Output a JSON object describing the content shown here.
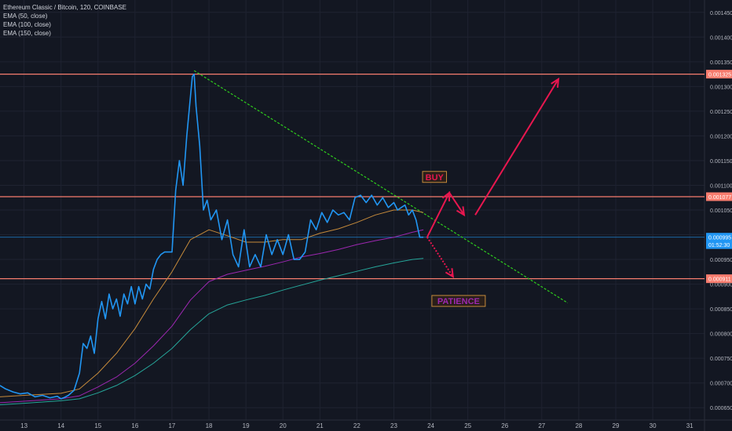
{
  "header": {
    "title": "Ethereum Classic / Bitcoin, 120, COINBASE",
    "indicators": [
      "EMA (50, close)",
      "EMA (100, close)",
      "EMA (150, close)"
    ]
  },
  "colors": {
    "background": "#131722",
    "grid": "#1f2331",
    "price": "#2196f3",
    "ema50": "#c58a3b",
    "ema100": "#9c27b0",
    "ema150": "#26a69a",
    "resistance": "#f77c6e",
    "trendline": "#2ecc1d",
    "arrow": "#e8174f",
    "axis_text": "#b2b5be",
    "label_text": "#ffffff"
  },
  "annotations": {
    "buy": "BUY",
    "patience": "PATIENCE"
  },
  "price_axis": {
    "ticks": [
      "0.001450",
      "0.001400",
      "0.001350",
      "0.001300",
      "0.001250",
      "0.001200",
      "0.001150",
      "0.001100",
      "0.001050",
      "0.001000",
      "0.000950",
      "0.000900",
      "0.000850",
      "0.000800",
      "0.000750",
      "0.000700",
      "0.000650"
    ],
    "level_labels": [
      {
        "text": "0.001325",
        "color": "#f77c6e",
        "value": 0.001325
      },
      {
        "text": "0.001077",
        "color": "#f77c6e",
        "value": 0.001077
      },
      {
        "text": "0.000995",
        "color": "#2196f3",
        "value": 0.000995
      },
      {
        "text": "01:52:30",
        "color": "#2196f3",
        "value": 0.00098
      },
      {
        "text": "0.000911",
        "color": "#f77c6e",
        "value": 0.000911
      }
    ]
  },
  "time_axis": {
    "labels": [
      "13",
      "14",
      "15",
      "16",
      "17",
      "18",
      "19",
      "20",
      "21",
      "22",
      "23",
      "24",
      "25",
      "26",
      "27",
      "28",
      "29",
      "30",
      "31"
    ]
  },
  "chart_data": {
    "type": "line",
    "ylim": [
      0.000625,
      0.001475
    ],
    "xlim": [
      12.35,
      31.4
    ],
    "price": {
      "x": [
        12.35,
        12.5,
        12.7,
        12.9,
        13.1,
        13.3,
        13.5,
        13.7,
        13.9,
        14.0,
        14.1,
        14.2,
        14.35,
        14.5,
        14.6,
        14.7,
        14.8,
        14.9,
        15.0,
        15.1,
        15.2,
        15.3,
        15.4,
        15.5,
        15.6,
        15.7,
        15.8,
        15.9,
        16.0,
        16.1,
        16.2,
        16.3,
        16.4,
        16.5,
        16.6,
        16.7,
        16.8,
        16.9,
        17.0,
        17.1,
        17.2,
        17.3,
        17.4,
        17.5,
        17.55,
        17.6,
        17.65,
        17.75,
        17.85,
        17.95,
        18.05,
        18.2,
        18.35,
        18.5,
        18.65,
        18.8,
        18.95,
        19.1,
        19.25,
        19.4,
        19.55,
        19.7,
        19.85,
        20.0,
        20.15,
        20.3,
        20.45,
        20.6,
        20.75,
        20.9,
        21.05,
        21.2,
        21.35,
        21.5,
        21.65,
        21.8,
        21.95,
        22.1,
        22.25,
        22.4,
        22.55,
        22.7,
        22.85,
        23.0,
        23.1,
        23.2,
        23.3,
        23.4,
        23.5,
        23.6,
        23.7,
        23.8
      ],
      "y": [
        0.000695,
        0.000688,
        0.000682,
        0.000678,
        0.00068,
        0.000672,
        0.000675,
        0.00067,
        0.000673,
        0.000668,
        0.000671,
        0.000675,
        0.000685,
        0.00072,
        0.00078,
        0.00077,
        0.000795,
        0.00076,
        0.00083,
        0.000865,
        0.00083,
        0.00088,
        0.00085,
        0.00087,
        0.000835,
        0.00088,
        0.00086,
        0.000895,
        0.00086,
        0.000895,
        0.00087,
        0.0009,
        0.00089,
        0.00093,
        0.00095,
        0.00096,
        0.000965,
        0.000965,
        0.000965,
        0.00109,
        0.00115,
        0.0011,
        0.0012,
        0.00128,
        0.00132,
        0.001325,
        0.00126,
        0.00118,
        0.00105,
        0.00107,
        0.00103,
        0.00105,
        0.00099,
        0.00103,
        0.00096,
        0.000935,
        0.00101,
        0.000935,
        0.00096,
        0.000935,
        0.001,
        0.00096,
        0.00099,
        0.00096,
        0.001,
        0.00095,
        0.00095,
        0.000965,
        0.00103,
        0.00101,
        0.001045,
        0.001025,
        0.00105,
        0.00104,
        0.001045,
        0.00103,
        0.001075,
        0.00108,
        0.001065,
        0.00108,
        0.00106,
        0.001075,
        0.001055,
        0.001065,
        0.00105,
        0.001055,
        0.00106,
        0.00104,
        0.00105,
        0.00103,
        0.000995,
        0.000995
      ]
    },
    "ema50": {
      "x": [
        12.35,
        13,
        14,
        14.5,
        15,
        15.5,
        16,
        16.5,
        17,
        17.5,
        18,
        18.5,
        19,
        19.5,
        20,
        20.5,
        21,
        21.5,
        22,
        22.5,
        23,
        23.5,
        23.8
      ],
      "y": [
        0.000672,
        0.000675,
        0.000679,
        0.000688,
        0.00072,
        0.00076,
        0.00081,
        0.00087,
        0.000925,
        0.00099,
        0.00101,
        0.000998,
        0.000985,
        0.000985,
        0.00099,
        0.00099,
        0.001003,
        0.001012,
        0.001025,
        0.00104,
        0.00105,
        0.00105,
        0.001045
      ]
    },
    "ema100": {
      "x": [
        12.35,
        13,
        14,
        14.5,
        15,
        15.5,
        16,
        16.5,
        17,
        17.5,
        18,
        18.5,
        19,
        19.5,
        20,
        20.5,
        21,
        21.5,
        22,
        22.5,
        23,
        23.5,
        23.8
      ],
      "y": [
        0.00066,
        0.000663,
        0.000668,
        0.000674,
        0.000692,
        0.000712,
        0.00074,
        0.000775,
        0.000815,
        0.000868,
        0.000905,
        0.00092,
        0.000928,
        0.000936,
        0.000945,
        0.000955,
        0.000962,
        0.00097,
        0.00098,
        0.000988,
        0.000995,
        0.001005,
        0.00101
      ]
    },
    "ema150": {
      "x": [
        12.35,
        13,
        14,
        14.5,
        15,
        15.5,
        16,
        16.5,
        17,
        17.5,
        18,
        18.5,
        19,
        19.5,
        20,
        20.5,
        21,
        21.5,
        22,
        22.5,
        23,
        23.5,
        23.8
      ],
      "y": [
        0.000656,
        0.000659,
        0.000664,
        0.000668,
        0.00068,
        0.000695,
        0.000715,
        0.00074,
        0.00077,
        0.000808,
        0.00084,
        0.000858,
        0.000868,
        0.000877,
        0.000888,
        0.000898,
        0.000908,
        0.000917,
        0.000926,
        0.000935,
        0.000943,
        0.00095,
        0.000952
      ]
    },
    "horizontal_levels": [
      0.001325,
      0.001077,
      0.000995,
      0.000911
    ],
    "trendline": {
      "x": [
        17.6,
        27.7
      ],
      "y": [
        0.001332,
        0.000862
      ]
    },
    "arrows": [
      {
        "path": [
          [
            23.9,
            0.000995
          ],
          [
            24.5,
            0.001085
          ],
          [
            24.9,
            0.00104
          ]
        ],
        "dashed": false
      },
      {
        "path": [
          [
            25.2,
            0.00104
          ],
          [
            27.45,
            0.001315
          ]
        ],
        "dashed": false
      },
      {
        "path": [
          [
            23.9,
            0.000995
          ],
          [
            24.6,
            0.000915
          ]
        ],
        "dashed": true
      }
    ],
    "labels_at": {
      "buy": [
        24.1,
        0.001117
      ],
      "patience": [
        24.75,
        0.000866
      ]
    }
  }
}
